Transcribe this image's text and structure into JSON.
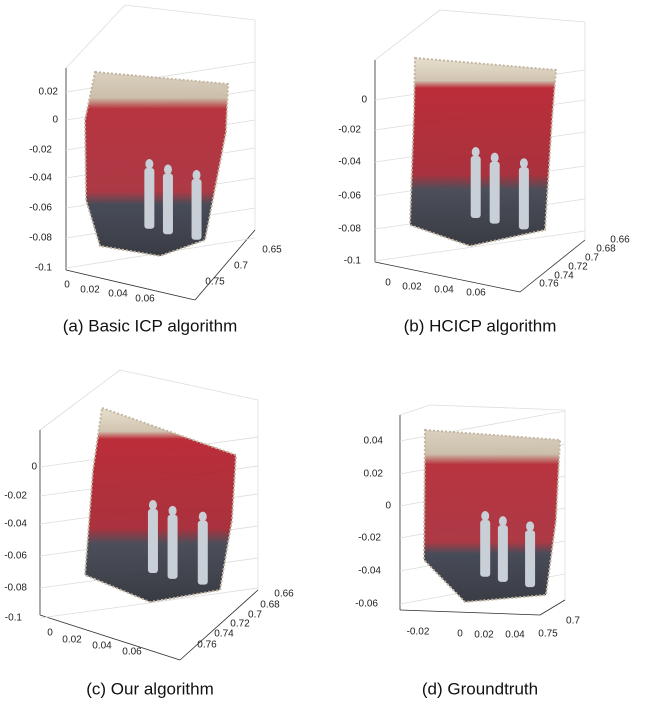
{
  "panels": [
    {
      "caption": "(a) Basic ICP algorithm",
      "z_ticks": [
        0.02,
        0,
        -0.02,
        -0.04,
        -0.06,
        -0.08,
        -0.1
      ],
      "x_ticks": [
        0,
        0.02,
        0.04,
        0.06
      ],
      "y_ticks": [
        0.65,
        0.7,
        0.75
      ]
    },
    {
      "caption": "(b) HCICP algorithm",
      "z_ticks": [
        0,
        -0.02,
        -0.04,
        -0.06,
        -0.08,
        -0.1
      ],
      "x_ticks": [
        0,
        0.02,
        0.04,
        0.06
      ],
      "y_ticks": [
        0.66,
        0.68,
        0.7,
        0.72,
        0.74,
        0.76
      ]
    },
    {
      "caption": "(c) Our algorithm",
      "z_ticks": [
        0,
        -0.02,
        -0.04,
        -0.06,
        -0.08,
        -0.1
      ],
      "x_ticks": [
        0,
        0.02,
        0.04,
        0.06
      ],
      "y_ticks": [
        0.66,
        0.68,
        0.7,
        0.72,
        0.74,
        0.76
      ]
    },
    {
      "caption": "(d) Groundtruth",
      "z_ticks": [
        0.04,
        0.02,
        0,
        -0.02,
        -0.04,
        -0.06
      ],
      "x_ticks": [
        -0.02,
        0,
        0.02,
        0.04
      ],
      "y_ticks": [
        0.75,
        0.7
      ]
    }
  ]
}
